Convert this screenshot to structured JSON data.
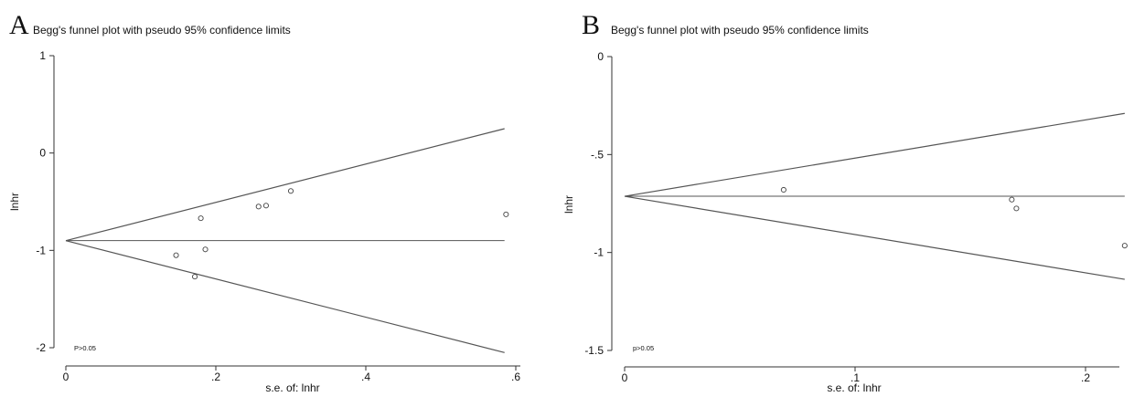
{
  "chart_data": [
    {
      "type": "scatter",
      "panel_label": "A",
      "title": "Begg's funnel plot with pseudo 95% confidence limits",
      "xlabel": "s.e. of: lnhr",
      "ylabel": "lnhr",
      "annotation": "P>0.05",
      "xlim": [
        0,
        0.6
      ],
      "ylim": [
        -2,
        1
      ],
      "xticks": [
        0,
        0.2,
        0.4,
        0.6
      ],
      "xtick_labels": [
        "0",
        ".2",
        ".4",
        ".6"
      ],
      "yticks": [
        -2,
        -1,
        0,
        1
      ],
      "ytick_labels": [
        "-2",
        "-1",
        "0",
        "1"
      ],
      "grid": false,
      "pooled_estimate": -0.9,
      "limit_lines": {
        "x": [
          0,
          0.585
        ],
        "upper": [
          -0.9,
          0.25
        ],
        "lower": [
          -0.9,
          -2.05
        ]
      },
      "points": [
        {
          "x": 0.147,
          "y": -1.05
        },
        {
          "x": 0.172,
          "y": -1.27
        },
        {
          "x": 0.18,
          "y": -0.67
        },
        {
          "x": 0.186,
          "y": -0.99
        },
        {
          "x": 0.257,
          "y": -0.55
        },
        {
          "x": 0.267,
          "y": -0.54
        },
        {
          "x": 0.3,
          "y": -0.39
        },
        {
          "x": 0.587,
          "y": -0.63
        }
      ]
    },
    {
      "type": "scatter",
      "panel_label": "B",
      "title": "Begg's funnel plot with pseudo 95% confidence limits",
      "xlabel": "s.e. of: lnhr",
      "ylabel": "lnhr",
      "annotation": "p>0.05",
      "xlim": [
        0,
        0.2
      ],
      "ylim": [
        -1.5,
        0
      ],
      "xticks": [
        0,
        0.1,
        0.2
      ],
      "xtick_labels": [
        "0",
        ".1",
        ".2"
      ],
      "yticks": [
        -1.5,
        -1,
        -0.5,
        0
      ],
      "ytick_labels": [
        "-1.5",
        "-1",
        "-.5",
        "0"
      ],
      "grid": false,
      "pooled_estimate": -0.713,
      "limit_lines": {
        "x": [
          0,
          0.217
        ],
        "upper": [
          -0.713,
          -0.29
        ],
        "lower": [
          -0.713,
          -1.137
        ]
      },
      "points": [
        {
          "x": 0.069,
          "y": -0.68
        },
        {
          "x": 0.168,
          "y": -0.73
        },
        {
          "x": 0.17,
          "y": -0.775
        },
        {
          "x": 0.217,
          "y": -0.965
        }
      ]
    }
  ]
}
